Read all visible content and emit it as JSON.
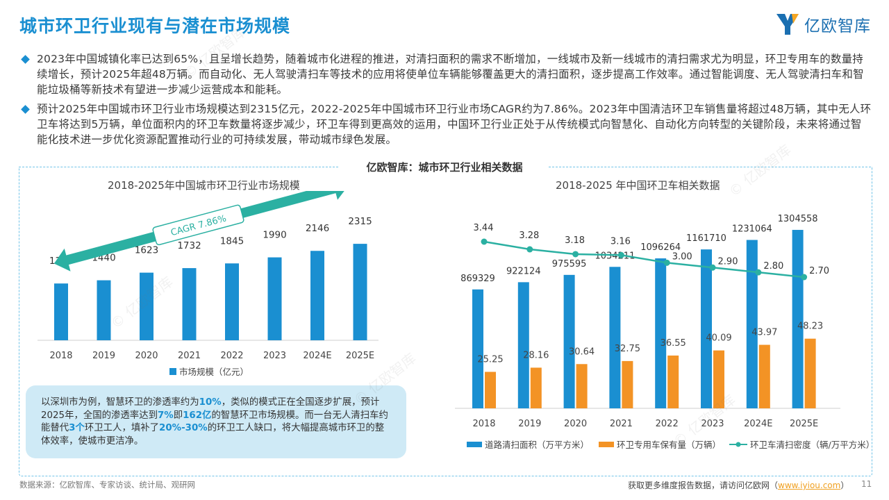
{
  "header": {
    "title": "城市环卫行业现有与潜在市场规模",
    "logo_text": "亿欧智库"
  },
  "bullets": [
    "2023年中国城镇化率已达到65%，且呈增长趋势，随着城市化进程的推进，对清扫面积的需求不断增加，一线城市及新一线城市的清扫需求尤为明显，环卫专用车的数量持续增长，预计2025年超48万辆。而自动化、无人驾驶清扫车等技术的应用将使单位车辆能够覆盖更大的清扫面积，逐步提高工作效率。通过智能调度、无人驾驶清扫车和智能垃圾桶等新技术有望进一步减少运营成本和能耗。",
    "预计2025年中国城市环卫行业市场规模达到2315亿元，2022-2025年中国城市环卫行业市场CAGR约为7.86%。2023年中国清洁环卫车销售量将超过48万辆，其中无人环卫车将达到5万辆，单位面积内的环卫车数量将逐步减少，环卫车得到更高效的运用，中国环卫行业正处于从传统模式向智慧化、自动化方向转型的关键阶段，未来将通过智能化技术进一步优化资源配置推动行业的可持续发展，带动城市绿色发展。"
  ],
  "section_title": "亿欧智库：城市环卫行业相关数据",
  "callout": {
    "t1": "以深圳市为例，智慧环卫的渗透率约为",
    "h1": "10%",
    "t2": "，类似的模式正在全国逐步扩展，预计2025年，全国的渗透率达到",
    "h2": "7%",
    "t3": "即",
    "h3": "162亿",
    "t4": "的智慧环卫市场规模。而一台无人清扫车约能替代",
    "h4": "3个",
    "t5": "环卫工人，填补了",
    "h5": "20%-30%",
    "t6": "的环卫工人缺口，将大幅提高城市环卫的整体效率，使城市更洁净。"
  },
  "chart_data": [
    {
      "type": "bar",
      "title": "2018-2025年中国城市环卫行业市场规模",
      "categories": [
        "2018",
        "2019",
        "2020",
        "2021",
        "2022",
        "2023",
        "2024E",
        "2025E"
      ],
      "series": [
        {
          "name": "市场规模（亿元）",
          "values": [
            1363,
            1440,
            1623,
            1732,
            1845,
            1990,
            2146,
            2315
          ]
        }
      ],
      "annotation": "CAGR 7.86%",
      "ylim": [
        0,
        2500
      ],
      "colors": {
        "bar": "#1a8fd1",
        "arrow": "#2bb0a2"
      },
      "legend": "bottom"
    },
    {
      "type": "bar+line",
      "title": "2018-2025 年中国环卫车相关数据",
      "categories": [
        "2018",
        "2019",
        "2020",
        "2021",
        "2022",
        "2023",
        "2024E",
        "2025E"
      ],
      "series": [
        {
          "name": "道路清扫面积（万平方米）",
          "type": "bar",
          "values": [
            869329,
            922124,
            975595,
            1034211,
            1096264,
            1161710,
            1231064,
            1304558
          ],
          "color": "#1a8fd1"
        },
        {
          "name": "环卫专用车保有量（万辆）",
          "type": "bar",
          "values": [
            25.25,
            28.16,
            30.64,
            32.75,
            36.55,
            40.09,
            43.97,
            48.23
          ],
          "color": "#f39325"
        },
        {
          "name": "环卫车清扫密度（辆/万平方米）",
          "type": "line",
          "values": [
            3.44,
            3.28,
            3.18,
            3.16,
            3.0,
            2.9,
            2.8,
            2.7
          ],
          "labels": [
            "3.44",
            "3.28",
            "3.18",
            "3.16",
            "3.00",
            "2.90",
            "2.80",
            "2.70"
          ],
          "color": "#2bb0a2"
        }
      ],
      "legend": "bottom"
    }
  ],
  "footer": {
    "source": "数据来源：亿欧智库、专家访谈、统计局、观研网",
    "more_text": "获取更多维度报告数据，请访问亿欧网（",
    "link": "www.iyiou.com",
    "more_end": "）",
    "page": "11"
  },
  "watermark": "© 亿欧智库"
}
